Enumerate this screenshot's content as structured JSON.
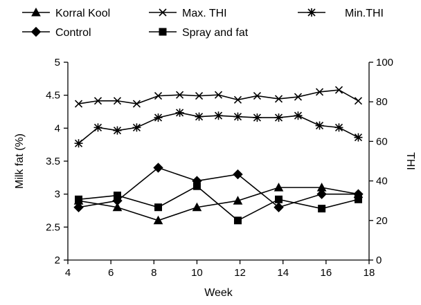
{
  "chart_data": {
    "type": "line",
    "xlabel": "Week",
    "ylabel": "Milk fat (%)",
    "y2label": "THI",
    "xlim": [
      4,
      18
    ],
    "ylim": [
      2,
      5
    ],
    "y2lim": [
      0,
      100
    ],
    "x_ticks": [
      "4",
      "6",
      "8",
      "10",
      "12",
      "14",
      "16",
      "18"
    ],
    "y_ticks": [
      "2",
      "2.5",
      "3",
      "3.5",
      "4",
      "4.5",
      "5"
    ],
    "y2_ticks": [
      "0",
      "20",
      "40",
      "60",
      "80",
      "100"
    ],
    "legend": [
      {
        "name": "Korral Kool",
        "marker": "triangle"
      },
      {
        "name": "Max. THI",
        "marker": "x"
      },
      {
        "name": "Min.THI",
        "marker": "asterisk"
      },
      {
        "name": "Control",
        "marker": "diamond"
      },
      {
        "name": "Spray and fat",
        "marker": "square"
      }
    ],
    "series": [
      {
        "name": "Korral Kool",
        "axis": "left",
        "marker": "triangle",
        "x": [
          4.5,
          6.3,
          8.2,
          10.0,
          11.9,
          13.8,
          15.8,
          17.5
        ],
        "values": [
          2.9,
          2.8,
          2.6,
          2.8,
          2.9,
          3.1,
          3.1,
          3.0
        ]
      },
      {
        "name": "Control",
        "axis": "left",
        "marker": "diamond",
        "x": [
          4.5,
          6.3,
          8.2,
          10.0,
          11.9,
          13.8,
          15.8,
          17.5
        ],
        "values": [
          2.8,
          2.9,
          3.4,
          3.2,
          3.3,
          2.8,
          3.0,
          3.0
        ]
      },
      {
        "name": "Spray and fat",
        "axis": "left",
        "marker": "square",
        "x": [
          4.5,
          6.3,
          8.2,
          10.0,
          11.9,
          13.8,
          15.8,
          17.5
        ],
        "values": [
          2.92,
          2.98,
          2.8,
          3.12,
          2.6,
          2.92,
          2.78,
          2.92
        ]
      },
      {
        "name": "Max. THI",
        "axis": "right",
        "marker": "x",
        "x": [
          4.5,
          5.4,
          6.3,
          7.2,
          8.2,
          9.2,
          10.1,
          11.0,
          11.9,
          12.8,
          13.8,
          14.7,
          15.7,
          16.6,
          17.5
        ],
        "values": [
          79,
          80.5,
          80.5,
          79,
          83,
          83.5,
          83,
          83.5,
          81,
          83,
          81.5,
          82.5,
          85,
          86,
          80.5
        ]
      },
      {
        "name": "Min.THI",
        "axis": "right",
        "marker": "asterisk",
        "x": [
          4.5,
          5.4,
          6.3,
          7.2,
          8.2,
          9.2,
          10.1,
          11.0,
          11.9,
          12.8,
          13.8,
          14.7,
          15.7,
          16.6,
          17.5
        ],
        "values": [
          59,
          67,
          65.5,
          67,
          72,
          74.5,
          72.5,
          73,
          72.5,
          72,
          72,
          73,
          68,
          67,
          62
        ]
      }
    ]
  }
}
